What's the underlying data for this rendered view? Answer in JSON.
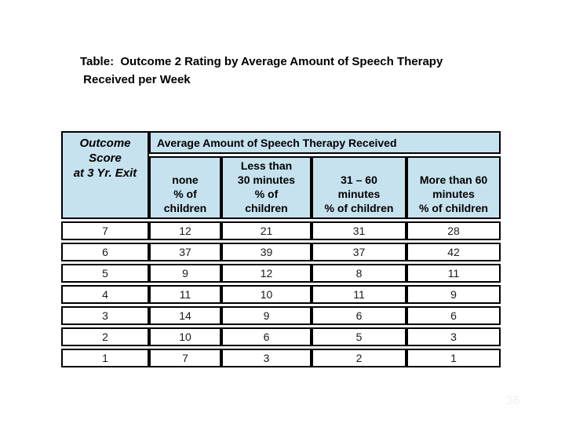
{
  "title": "Table:  Outcome 2 Rating by Average Amount of Speech Therapy\n Received per Week",
  "page_number": "36",
  "colors": {
    "header_fill": "#C6E2EE",
    "border": "#000000",
    "page_number_text": "#f0f0f0"
  },
  "table": {
    "corner_header": "Outcome\nScore\nat 3 Yr. Exit",
    "span_header": "Average Amount of Speech Therapy Received",
    "column_headers": [
      "none\n% of\nchildren",
      "Less than\n30 minutes\n% of\nchildren",
      "31 – 60\nminutes\n% of children",
      "More than 60\nminutes\n% of children"
    ],
    "rows": [
      {
        "cells": [
          "7",
          "12",
          "21",
          "31",
          "28"
        ]
      },
      {
        "cells": [
          "6",
          "37",
          "39",
          "37",
          "42"
        ]
      },
      {
        "cells": [
          "5",
          "9",
          "12",
          "8",
          "11"
        ]
      },
      {
        "cells": [
          "4",
          "11",
          "10",
          "11",
          "9"
        ]
      },
      {
        "cells": [
          "3",
          "14",
          "9",
          "6",
          "6"
        ]
      },
      {
        "cells": [
          "2",
          "10",
          "6",
          "5",
          "3"
        ]
      },
      {
        "cells": [
          "1",
          "7",
          "3",
          "2",
          "1"
        ]
      }
    ]
  },
  "chart_data": {
    "type": "table",
    "title": "Table: Outcome 2 Rating by Average Amount of Speech Therapy Received per Week",
    "row_axis_label": "Outcome Score at 3 Yr. Exit",
    "column_group_label": "Average Amount of Speech Therapy Received",
    "columns": [
      "none % of children",
      "Less than 30 minutes % of children",
      "31 – 60 minutes % of children",
      "More than 60 minutes % of children"
    ],
    "outcome_scores": [
      7,
      6,
      5,
      4,
      3,
      2,
      1
    ],
    "values": [
      [
        12,
        21,
        31,
        28
      ],
      [
        37,
        39,
        37,
        42
      ],
      [
        9,
        12,
        8,
        11
      ],
      [
        11,
        10,
        11,
        9
      ],
      [
        14,
        9,
        6,
        6
      ],
      [
        10,
        6,
        5,
        3
      ],
      [
        7,
        3,
        2,
        1
      ]
    ]
  }
}
